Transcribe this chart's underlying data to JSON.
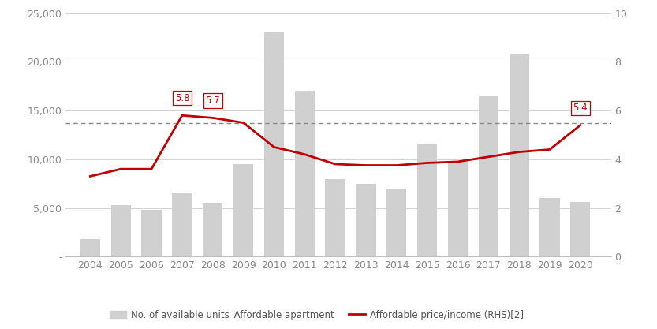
{
  "years": [
    2004,
    2005,
    2006,
    2007,
    2008,
    2009,
    2010,
    2011,
    2012,
    2013,
    2014,
    2015,
    2016,
    2017,
    2018,
    2019,
    2020
  ],
  "bar_values": [
    1800,
    5300,
    4800,
    6600,
    5500,
    9500,
    23000,
    17000,
    8000,
    7500,
    7000,
    11500,
    9800,
    16500,
    20800,
    6000,
    5600
  ],
  "line_values": [
    3.3,
    3.6,
    3.6,
    5.8,
    5.7,
    5.5,
    4.5,
    4.2,
    3.8,
    3.75,
    3.75,
    3.85,
    3.9,
    4.1,
    4.3,
    4.4,
    5.4
  ],
  "annotated_points": [
    {
      "year": 2007,
      "value": 5.8,
      "label": "5.8"
    },
    {
      "year": 2008,
      "value": 5.7,
      "label": "5.7"
    },
    {
      "year": 2020,
      "value": 5.4,
      "label": "5.4"
    }
  ],
  "dashed_line_value": 5.5,
  "bar_color": "#d0d0d0",
  "line_color": "#c00000",
  "dashed_line_color": "#888888",
  "annotation_text_color": "#c00000",
  "annotation_box_edge_color": "#c00000",
  "ylim_left": [
    0,
    25000
  ],
  "ylim_right": [
    0,
    10
  ],
  "yticks_left": [
    0,
    5000,
    10000,
    15000,
    20000,
    25000
  ],
  "yticks_right": [
    0,
    2,
    4,
    6,
    8,
    10
  ],
  "ytick_labels_left": [
    "-",
    "5,000",
    "10,000",
    "15,000",
    "20,000",
    "25,000"
  ],
  "ytick_labels_right": [
    "0",
    "2",
    "4",
    "6",
    "8",
    "10"
  ],
  "legend_bar_label": "No. of available units_Affordable apartment",
  "legend_line_label": "Affordable price/income (RHS)[2]",
  "background_color": "#ffffff",
  "grid_color": "#d3d3d3",
  "spine_color": "#c0c0c0",
  "axis_fontsize": 9,
  "legend_fontsize": 8.5
}
